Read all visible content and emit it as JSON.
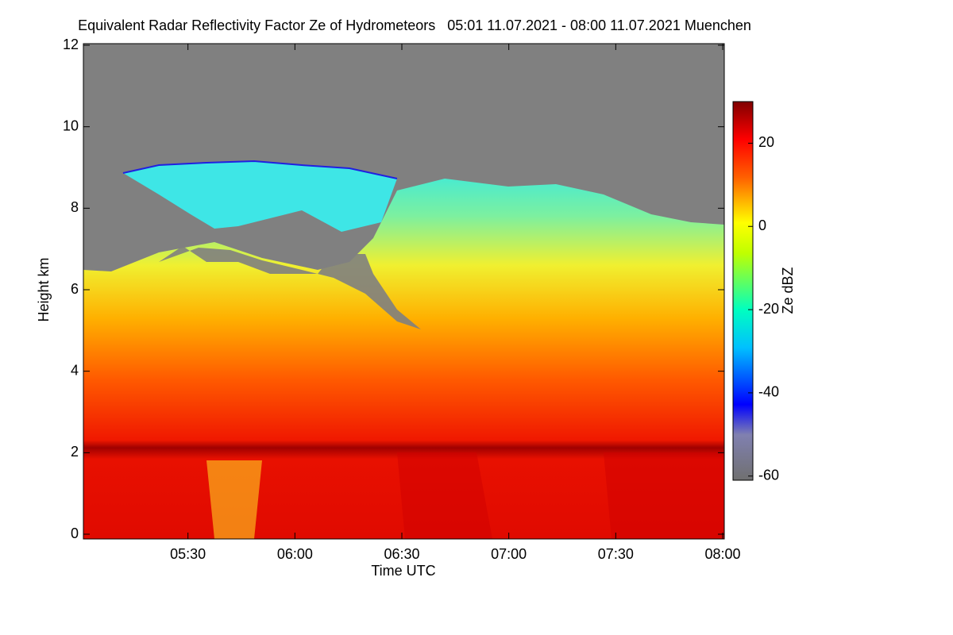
{
  "chart_data": {
    "type": "heatmap",
    "title": "Equivalent Radar Reflectivity Factor Ze of Hydrometeors   05:01 11.07.2021 - 08:00 11.07.2021 Muenchen",
    "xlabel": "Time UTC",
    "ylabel": "Height km",
    "xlim": [
      301,
      480
    ],
    "xticks": [
      {
        "value": 330,
        "label": "05:30"
      },
      {
        "value": 360,
        "label": "06:00"
      },
      {
        "value": 390,
        "label": "06:30"
      },
      {
        "value": 420,
        "label": "07:00"
      },
      {
        "value": 450,
        "label": "07:30"
      },
      {
        "value": 480,
        "label": "08:00"
      }
    ],
    "ylim": [
      0,
      12
    ],
    "yticks": [
      0,
      2,
      4,
      6,
      8,
      10,
      12
    ],
    "colorbar_label": "Ze dBZ",
    "clim": [
      -61,
      30
    ],
    "colorbar_ticks": [
      -60,
      -40,
      -20,
      0,
      20
    ]
  }
}
